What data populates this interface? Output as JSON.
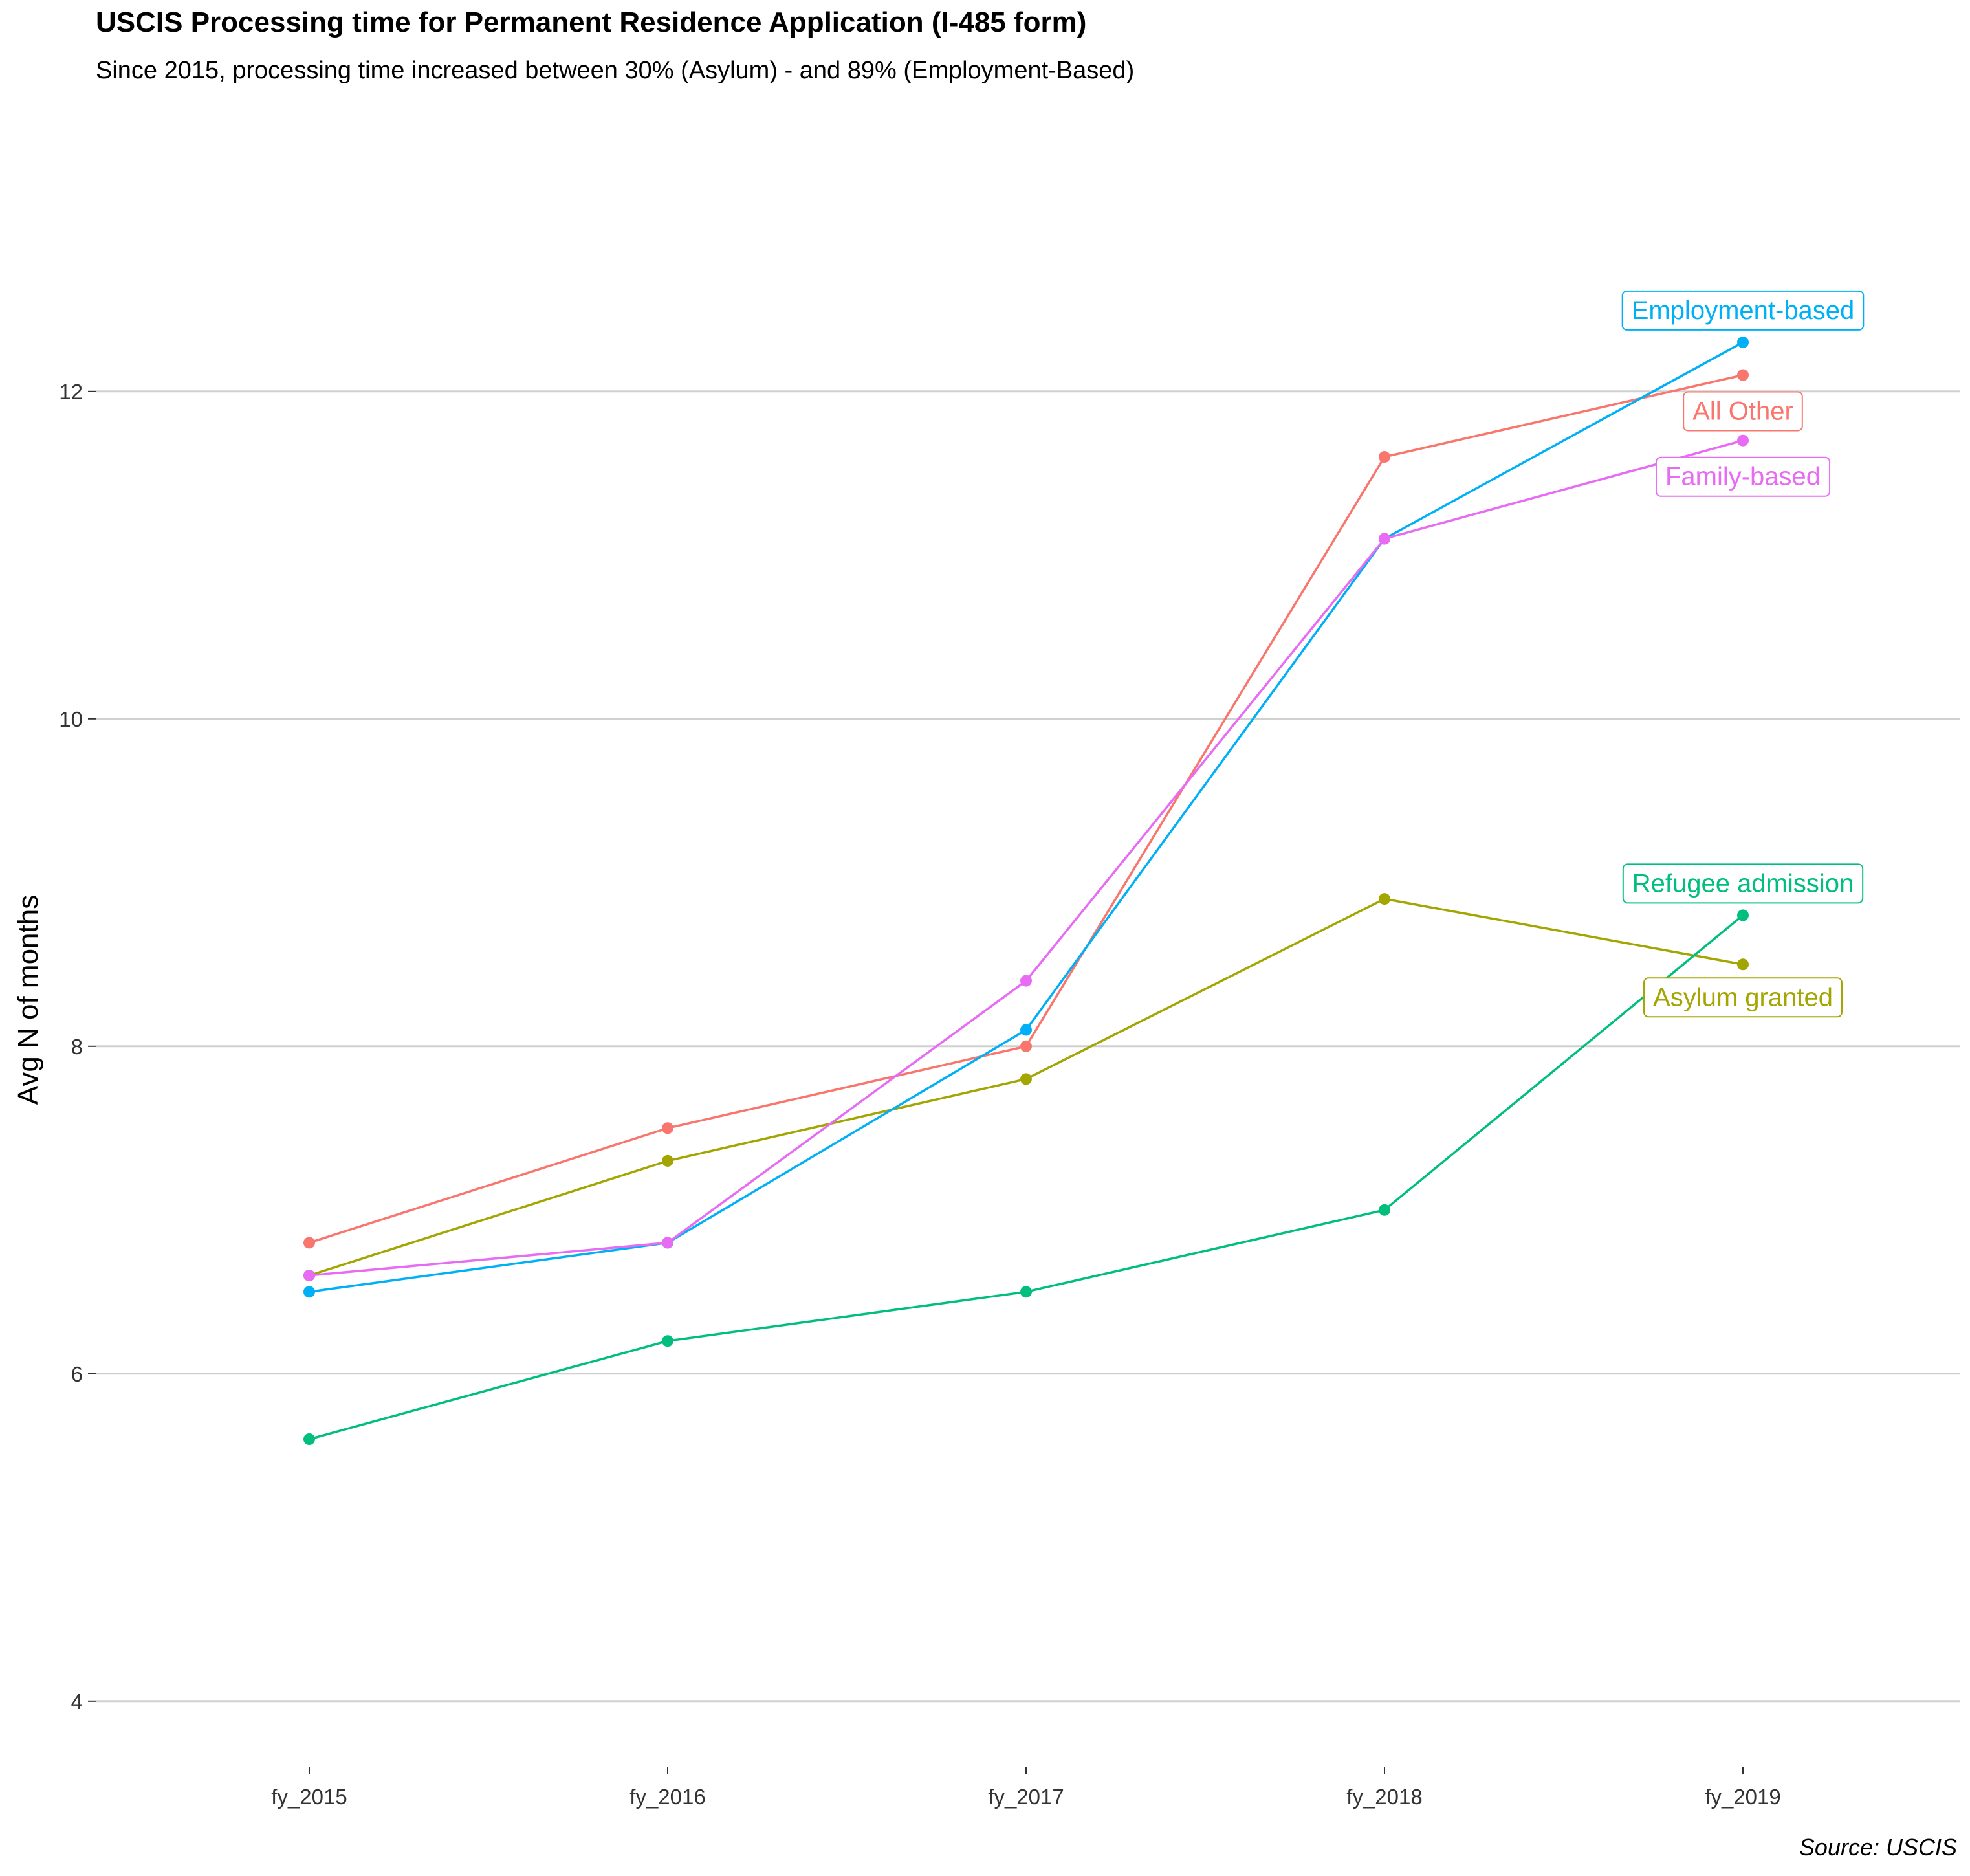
{
  "chart_data": {
    "type": "line",
    "title": "USCIS Processing time for Permanent Residence Application (I-485 form)",
    "subtitle": "Since 2015, processing time increased between 30% (Asylum) - and 89% (Employment-Based)",
    "caption": "Source: USCIS",
    "xlabel": "",
    "ylabel": "Avg N of months",
    "categories": [
      "fy_2015",
      "fy_2016",
      "fy_2017",
      "fy_2018",
      "fy_2019"
    ],
    "ylim": [
      3.6,
      13.6
    ],
    "yticks": [
      4,
      6,
      8,
      10,
      12
    ],
    "grid": true,
    "legend": "direct labels at last point",
    "series": [
      {
        "name": "All Other",
        "color": "#F8766D",
        "values": [
          6.8,
          7.5,
          8.0,
          11.6,
          12.1
        ]
      },
      {
        "name": "Asylum granted",
        "color": "#A3A500",
        "values": [
          6.6,
          7.3,
          7.8,
          8.9,
          8.5
        ]
      },
      {
        "name": "Refugee admission",
        "color": "#00BF7D",
        "values": [
          5.6,
          6.2,
          6.5,
          7.0,
          8.8
        ]
      },
      {
        "name": "Employment-based",
        "color": "#00B0F6",
        "values": [
          6.5,
          6.8,
          8.1,
          11.1,
          12.3
        ]
      },
      {
        "name": "Family-based",
        "color": "#E76BF3",
        "values": [
          6.6,
          6.8,
          8.4,
          11.1,
          11.7
        ]
      }
    ]
  }
}
